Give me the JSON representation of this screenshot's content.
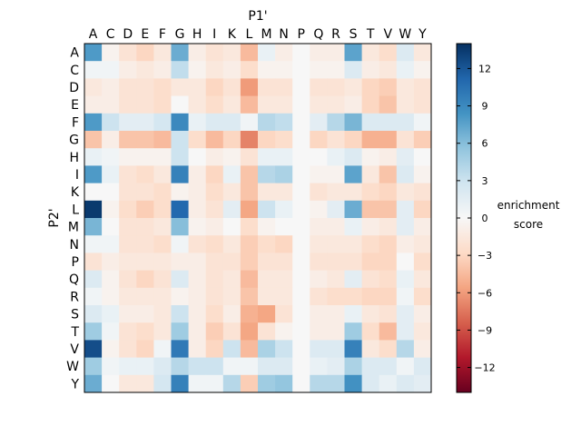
{
  "chart_data": {
    "type": "heatmap",
    "xlabel": "P1'",
    "ylabel": "P2'",
    "x_categories": [
      "A",
      "C",
      "D",
      "E",
      "F",
      "G",
      "H",
      "I",
      "K",
      "L",
      "M",
      "N",
      "P",
      "Q",
      "R",
      "S",
      "T",
      "V",
      "W",
      "Y"
    ],
    "y_categories": [
      "A",
      "C",
      "D",
      "E",
      "F",
      "G",
      "H",
      "I",
      "K",
      "L",
      "M",
      "N",
      "P",
      "Q",
      "R",
      "S",
      "T",
      "V",
      "W",
      "Y"
    ],
    "colorbar": {
      "label_line1": "enrichment",
      "label_line2": "score",
      "range": [
        -14,
        14
      ],
      "ticks": [
        "12",
        "9",
        "6",
        "3",
        "0",
        "−3",
        "−6",
        "−9",
        "−12"
      ],
      "tick_values": [
        12,
        9,
        6,
        3,
        0,
        -3,
        -6,
        -9,
        -12
      ],
      "colors": [
        "#67001f",
        "#b2182b",
        "#d6604d",
        "#f4a582",
        "#fddbc7",
        "#f7f7f7",
        "#d1e5f0",
        "#92c5de",
        "#4393c3",
        "#2166ac",
        "#053061"
      ]
    },
    "values": [
      [
        8.0,
        -0.5,
        -2.0,
        -3.0,
        -1.5,
        7.0,
        -1.0,
        -2.0,
        -1.5,
        -4.5,
        1.0,
        -1.0,
        0.0,
        -1.0,
        -1.0,
        7.5,
        -1.5,
        -2.5,
        2.0,
        -1.5
      ],
      [
        0.5,
        0.5,
        -1.0,
        -1.5,
        -1.0,
        3.5,
        -0.5,
        -1.5,
        -1.0,
        -2.5,
        -0.5,
        -0.5,
        0.0,
        -0.5,
        -0.5,
        2.0,
        -1.0,
        -1.5,
        1.0,
        -0.5
      ],
      [
        -1.5,
        -1.0,
        -2.0,
        -2.0,
        -2.5,
        -1.5,
        -1.5,
        -3.0,
        -2.0,
        -6.0,
        -2.0,
        -2.0,
        0.0,
        -2.0,
        -2.0,
        -1.5,
        -3.0,
        -3.5,
        -1.5,
        -2.0
      ],
      [
        -1.0,
        -1.0,
        -2.0,
        -2.0,
        -2.5,
        0.0,
        -1.5,
        -2.5,
        -1.5,
        -4.5,
        -1.5,
        -1.5,
        0.0,
        -1.5,
        -1.5,
        -1.0,
        -3.0,
        -4.0,
        -1.5,
        -2.0
      ],
      [
        8.0,
        3.0,
        1.5,
        1.5,
        2.5,
        9.0,
        1.0,
        2.0,
        2.0,
        0.5,
        4.0,
        3.5,
        0.0,
        1.5,
        4.0,
        6.5,
        2.0,
        2.0,
        2.0,
        0.5
      ],
      [
        -4.0,
        -1.0,
        -4.0,
        -4.0,
        -4.5,
        3.0,
        -2.5,
        -4.5,
        -3.0,
        -7.0,
        -3.0,
        -2.5,
        0.0,
        -3.0,
        -2.0,
        -3.0,
        -5.0,
        -5.0,
        -2.0,
        -3.5
      ],
      [
        1.0,
        0.5,
        -0.5,
        -0.5,
        -0.5,
        3.0,
        0.0,
        -1.0,
        -0.5,
        -2.0,
        1.0,
        1.0,
        0.0,
        0.0,
        1.0,
        2.0,
        -0.5,
        -1.0,
        1.5,
        0.0
      ],
      [
        8.0,
        1.0,
        -2.0,
        -2.5,
        -1.5,
        9.5,
        -1.0,
        -3.0,
        1.0,
        -4.0,
        4.0,
        4.5,
        0.0,
        -0.5,
        -0.5,
        7.5,
        -1.5,
        -4.0,
        2.0,
        -0.5
      ],
      [
        0.0,
        0.0,
        -2.0,
        -2.0,
        -2.5,
        -0.5,
        -1.0,
        -2.5,
        -1.5,
        -4.0,
        -1.5,
        -1.5,
        0.0,
        -2.0,
        -1.5,
        -1.5,
        -2.5,
        -3.0,
        -1.5,
        -2.0
      ],
      [
        13.5,
        -0.5,
        -2.5,
        -3.5,
        -2.5,
        11.0,
        -1.0,
        -2.0,
        1.5,
        -5.5,
        3.0,
        1.0,
        0.0,
        -0.5,
        1.5,
        7.0,
        -4.0,
        -4.0,
        1.5,
        -3.0
      ],
      [
        6.5,
        0.0,
        -2.0,
        -2.0,
        -1.5,
        6.0,
        -0.5,
        -1.0,
        0.0,
        -2.5,
        -0.5,
        0.0,
        0.0,
        -1.0,
        -1.0,
        1.0,
        -1.0,
        -1.5,
        1.5,
        -1.0
      ],
      [
        0.5,
        0.5,
        -2.0,
        -2.0,
        -2.5,
        0.5,
        -2.0,
        -2.5,
        -1.5,
        -3.5,
        -2.5,
        -3.0,
        0.0,
        -1.5,
        -1.5,
        -1.5,
        -2.5,
        -3.0,
        -1.0,
        -1.5
      ],
      [
        -2.0,
        -1.0,
        -1.5,
        -1.5,
        -1.5,
        -1.0,
        -1.0,
        -2.0,
        -2.0,
        -3.5,
        -2.0,
        -2.0,
        0.0,
        -2.0,
        -2.0,
        -2.0,
        -3.0,
        -3.0,
        0.0,
        -2.5
      ],
      [
        2.0,
        -0.5,
        -2.0,
        -3.0,
        -2.0,
        2.0,
        -1.0,
        -2.0,
        -1.5,
        -4.5,
        -1.5,
        -1.5,
        0.0,
        -1.0,
        -1.5,
        1.5,
        -2.0,
        -2.5,
        1.0,
        -1.5
      ],
      [
        0.5,
        -0.5,
        -1.5,
        -1.5,
        -1.5,
        -0.5,
        -1.0,
        -2.0,
        -1.5,
        -4.0,
        -1.5,
        -1.5,
        0.0,
        -2.0,
        -2.5,
        -2.5,
        -3.0,
        -3.0,
        0.5,
        -2.5
      ],
      [
        2.0,
        1.0,
        -1.0,
        -1.0,
        -1.5,
        3.0,
        -1.0,
        -2.5,
        -1.0,
        -5.0,
        -5.5,
        -2.0,
        0.0,
        -1.0,
        -1.0,
        1.0,
        -1.5,
        -2.0,
        1.5,
        -1.0
      ],
      [
        5.0,
        0.5,
        -2.0,
        -2.5,
        -1.5,
        5.0,
        -1.0,
        -3.5,
        -2.0,
        -5.5,
        -2.0,
        -0.5,
        0.0,
        -1.0,
        -1.0,
        5.0,
        -2.5,
        -4.5,
        1.5,
        -1.5
      ],
      [
        12.5,
        -0.5,
        -2.0,
        -3.0,
        0.5,
        10.0,
        -1.0,
        -3.0,
        3.0,
        -4.5,
        4.5,
        3.0,
        0.0,
        2.0,
        2.0,
        9.5,
        -1.5,
        -2.5,
        4.0,
        -1.0
      ],
      [
        5.0,
        0.5,
        1.0,
        1.0,
        2.0,
        4.0,
        3.0,
        3.0,
        0.5,
        0.5,
        2.0,
        2.0,
        0.0,
        1.0,
        1.5,
        4.5,
        2.0,
        2.0,
        0.5,
        2.0
      ],
      [
        7.0,
        0.0,
        -1.5,
        -1.5,
        2.5,
        9.5,
        0.5,
        0.5,
        4.0,
        -3.5,
        5.0,
        5.5,
        0.0,
        4.0,
        4.0,
        8.5,
        2.0,
        1.0,
        2.0,
        1.5
      ]
    ]
  }
}
